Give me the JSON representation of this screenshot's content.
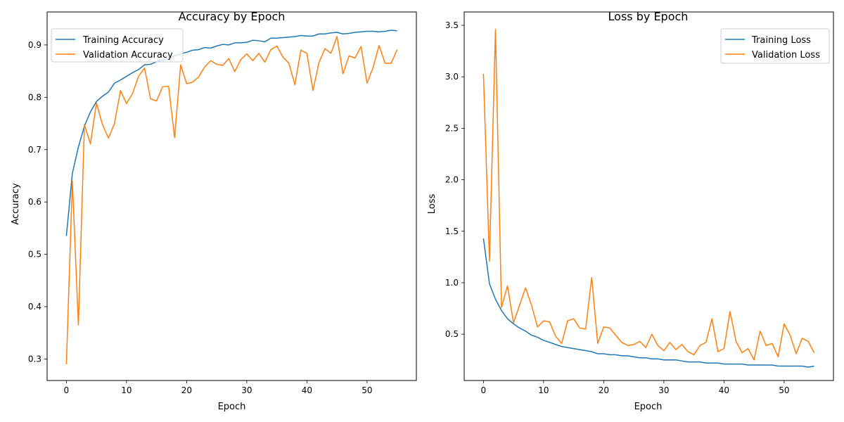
{
  "chart_data": [
    {
      "type": "line",
      "title": "Accuracy by Epoch",
      "xlabel": "Epoch",
      "ylabel": "Accuracy",
      "xlim": [
        -3.2,
        58.2
      ],
      "ylim": [
        0.259,
        0.963
      ],
      "xticks": [
        0,
        10,
        20,
        30,
        40,
        50
      ],
      "yticks": [
        0.3,
        0.4,
        0.5,
        0.6,
        0.7,
        0.8,
        0.9
      ],
      "ytick_labels": [
        "0.3",
        "0.4",
        "0.5",
        "0.6",
        "0.7",
        "0.8",
        "0.9"
      ],
      "legend_position": "top-left",
      "grid": false,
      "series": [
        {
          "name": "Training Accuracy",
          "color": "#1f77b4",
          "x": [
            0,
            1,
            2,
            3,
            4,
            5,
            6,
            7,
            8,
            9,
            10,
            11,
            12,
            13,
            14,
            15,
            16,
            17,
            18,
            19,
            20,
            21,
            22,
            23,
            24,
            25,
            26,
            27,
            28,
            29,
            30,
            31,
            32,
            33,
            34,
            35,
            36,
            37,
            38,
            39,
            40,
            41,
            42,
            43,
            44,
            45,
            46,
            47,
            48,
            49,
            50,
            51,
            52,
            53,
            54,
            55
          ],
          "values": [
            0.535,
            0.655,
            0.705,
            0.745,
            0.772,
            0.792,
            0.802,
            0.81,
            0.827,
            0.833,
            0.84,
            0.847,
            0.853,
            0.862,
            0.863,
            0.868,
            0.871,
            0.875,
            0.879,
            0.883,
            0.886,
            0.89,
            0.891,
            0.895,
            0.894,
            0.898,
            0.901,
            0.9,
            0.904,
            0.904,
            0.905,
            0.909,
            0.908,
            0.906,
            0.913,
            0.913,
            0.914,
            0.915,
            0.916,
            0.918,
            0.917,
            0.917,
            0.921,
            0.921,
            0.923,
            0.924,
            0.921,
            0.922,
            0.924,
            0.925,
            0.926,
            0.926,
            0.925,
            0.926,
            0.928,
            0.927
          ]
        },
        {
          "name": "Validation Accuracy",
          "color": "#ff7f0e",
          "x": [
            0,
            1,
            2,
            3,
            4,
            5,
            6,
            7,
            8,
            9,
            10,
            11,
            12,
            13,
            14,
            15,
            16,
            17,
            18,
            19,
            20,
            21,
            22,
            23,
            24,
            25,
            26,
            27,
            28,
            29,
            30,
            31,
            32,
            33,
            34,
            35,
            36,
            37,
            38,
            39,
            40,
            41,
            42,
            43,
            44,
            45,
            46,
            47,
            48,
            49,
            50,
            51,
            52,
            53,
            54,
            55
          ],
          "values": [
            0.29,
            0.64,
            0.365,
            0.748,
            0.711,
            0.789,
            0.748,
            0.722,
            0.75,
            0.813,
            0.788,
            0.807,
            0.84,
            0.856,
            0.797,
            0.793,
            0.82,
            0.821,
            0.723,
            0.862,
            0.826,
            0.829,
            0.839,
            0.858,
            0.87,
            0.863,
            0.861,
            0.874,
            0.849,
            0.872,
            0.883,
            0.87,
            0.884,
            0.867,
            0.891,
            0.898,
            0.877,
            0.865,
            0.824,
            0.89,
            0.884,
            0.813,
            0.866,
            0.893,
            0.884,
            0.916,
            0.845,
            0.879,
            0.875,
            0.897,
            0.827,
            0.857,
            0.899,
            0.865,
            0.865,
            0.891
          ]
        }
      ]
    },
    {
      "type": "line",
      "title": "Loss by Epoch",
      "xlabel": "Epoch",
      "ylabel": "Loss",
      "xlim": [
        -3.2,
        58.2
      ],
      "ylim": [
        0.05,
        3.63
      ],
      "xticks": [
        0,
        10,
        20,
        30,
        40,
        50
      ],
      "yticks": [
        0.5,
        1.0,
        1.5,
        2.0,
        2.5,
        3.0,
        3.5
      ],
      "ytick_labels": [
        "0.5",
        "1.0",
        "1.5",
        "2.0",
        "2.5",
        "3.0",
        "3.5"
      ],
      "legend_position": "top-right",
      "grid": false,
      "series": [
        {
          "name": "Training Loss",
          "color": "#1f77b4",
          "x": [
            0,
            1,
            2,
            3,
            4,
            5,
            6,
            7,
            8,
            9,
            10,
            11,
            12,
            13,
            14,
            15,
            16,
            17,
            18,
            19,
            20,
            21,
            22,
            23,
            24,
            25,
            26,
            27,
            28,
            29,
            30,
            31,
            32,
            33,
            34,
            35,
            36,
            37,
            38,
            39,
            40,
            41,
            42,
            43,
            44,
            45,
            46,
            47,
            48,
            49,
            50,
            51,
            52,
            53,
            54,
            55
          ],
          "values": [
            1.43,
            0.99,
            0.84,
            0.73,
            0.65,
            0.6,
            0.56,
            0.53,
            0.49,
            0.47,
            0.44,
            0.42,
            0.4,
            0.38,
            0.37,
            0.36,
            0.35,
            0.34,
            0.33,
            0.31,
            0.31,
            0.3,
            0.3,
            0.29,
            0.29,
            0.28,
            0.27,
            0.27,
            0.26,
            0.26,
            0.25,
            0.25,
            0.25,
            0.24,
            0.23,
            0.23,
            0.23,
            0.22,
            0.22,
            0.22,
            0.21,
            0.21,
            0.21,
            0.21,
            0.2,
            0.2,
            0.2,
            0.2,
            0.2,
            0.19,
            0.19,
            0.19,
            0.19,
            0.19,
            0.18,
            0.19
          ]
        },
        {
          "name": "Validation Loss",
          "color": "#ff7f0e",
          "x": [
            0,
            1,
            2,
            3,
            4,
            5,
            6,
            7,
            8,
            9,
            10,
            11,
            12,
            13,
            14,
            15,
            16,
            17,
            18,
            19,
            20,
            21,
            22,
            23,
            24,
            25,
            26,
            27,
            28,
            29,
            30,
            31,
            32,
            33,
            34,
            35,
            36,
            37,
            38,
            39,
            40,
            41,
            42,
            43,
            44,
            45,
            46,
            47,
            48,
            49,
            50,
            51,
            52,
            53,
            54,
            55
          ],
          "values": [
            3.03,
            1.21,
            3.46,
            0.76,
            0.97,
            0.61,
            0.78,
            0.95,
            0.78,
            0.57,
            0.63,
            0.62,
            0.48,
            0.41,
            0.63,
            0.65,
            0.56,
            0.55,
            1.05,
            0.41,
            0.57,
            0.56,
            0.49,
            0.42,
            0.39,
            0.4,
            0.43,
            0.37,
            0.5,
            0.39,
            0.34,
            0.42,
            0.35,
            0.4,
            0.33,
            0.3,
            0.39,
            0.42,
            0.65,
            0.33,
            0.36,
            0.72,
            0.43,
            0.32,
            0.36,
            0.25,
            0.53,
            0.39,
            0.41,
            0.28,
            0.6,
            0.49,
            0.31,
            0.46,
            0.43,
            0.32
          ]
        }
      ]
    }
  ]
}
